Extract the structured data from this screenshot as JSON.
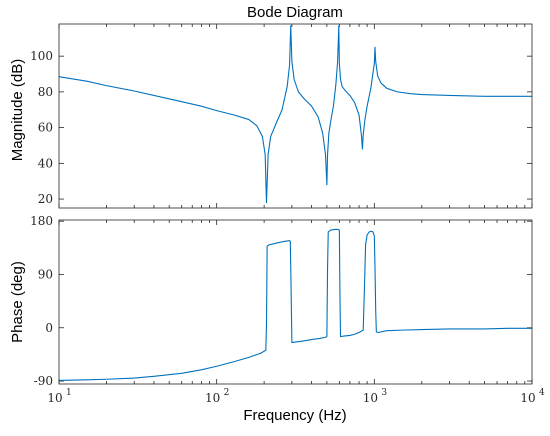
{
  "chart_data": [
    {
      "type": "line",
      "title": "Bode Diagram",
      "ylabel": "Magnitude (dB)",
      "xlabel": "",
      "x_scale": "log",
      "xlim": [
        10,
        10000
      ],
      "ylim": [
        15,
        118
      ],
      "yticks": [
        20,
        40,
        60,
        80,
        100
      ],
      "grid": false,
      "color": "#0072BD",
      "series": [
        {
          "x": [
            10,
            15,
            20,
            30,
            40,
            60,
            80,
            100,
            130,
            160,
            180,
            195,
            203,
            207,
            212,
            220,
            240,
            260,
            280,
            290,
            295,
            300,
            310,
            330,
            360,
            400,
            440,
            470,
            490,
            500,
            505,
            515,
            530,
            550,
            570,
            585,
            595,
            600,
            610,
            625,
            650,
            700,
            750,
            800,
            830,
            840,
            850,
            870,
            900,
            950,
            1000,
            1010,
            1020,
            1050,
            1100,
            1200,
            1400,
            1700,
            2000,
            3000,
            5000,
            7000,
            10000
          ],
          "y": [
            88.5,
            86,
            83.5,
            80.5,
            78,
            74.5,
            72,
            69.5,
            67,
            64.5,
            61,
            55,
            45,
            18,
            45,
            55,
            63,
            70,
            83,
            95,
            117,
            97,
            87,
            80,
            76,
            72,
            66,
            57,
            45,
            28,
            45,
            57,
            64,
            72,
            84,
            97,
            117,
            96,
            87,
            83,
            81,
            78,
            74,
            67,
            55,
            48,
            56,
            64,
            72,
            82,
            96,
            105,
            97,
            89,
            85,
            82,
            80,
            79,
            78.5,
            78,
            77.5,
            77.5,
            77.5
          ]
        }
      ]
    },
    {
      "type": "line",
      "title": "",
      "ylabel": "Phase (deg)",
      "xlabel": "Frequency  (Hz)",
      "x_scale": "log",
      "xlim": [
        10,
        10000
      ],
      "ylim": [
        -95,
        182
      ],
      "yticks": [
        -90,
        0,
        90,
        180
      ],
      "xticks": [
        10,
        100,
        1000,
        10000
      ],
      "xtick_labels": [
        {
          "base": "10",
          "exp": "1"
        },
        {
          "base": "10",
          "exp": "2"
        },
        {
          "base": "10",
          "exp": "3"
        },
        {
          "base": "10",
          "exp": "4"
        }
      ],
      "grid": false,
      "color": "#0072BD",
      "series": [
        {
          "x": [
            10,
            15,
            20,
            30,
            40,
            60,
            80,
            100,
            130,
            160,
            190,
            205,
            207,
            209,
            215,
            240,
            270,
            290,
            293,
            296,
            300,
            320,
            360,
            400,
            450,
            490,
            500,
            505,
            510,
            530,
            560,
            590,
            600,
            605,
            610,
            640,
            700,
            750,
            800,
            850,
            870,
            880,
            900,
            930,
            950,
            980,
            1000,
            1010,
            1020,
            1030,
            1060,
            1100,
            1200,
            1500,
            2000,
            3000,
            5000,
            7000,
            10000
          ],
          "y": [
            -89,
            -88,
            -87,
            -85,
            -82,
            -77,
            -71,
            -65,
            -57,
            -50,
            -43,
            -38,
            5,
            138,
            140,
            143,
            146,
            147,
            146,
            80,
            -25,
            -24,
            -22,
            -20,
            -18,
            -16,
            -15,
            100,
            162,
            165,
            166,
            166,
            165,
            60,
            -15,
            -14,
            -13,
            -11,
            -8,
            -4,
            90,
            140,
            157,
            162,
            163,
            162,
            155,
            100,
            30,
            -7,
            -8,
            -7,
            -5,
            -4,
            -3,
            -2,
            -2,
            -1,
            -1
          ]
        }
      ]
    }
  ]
}
